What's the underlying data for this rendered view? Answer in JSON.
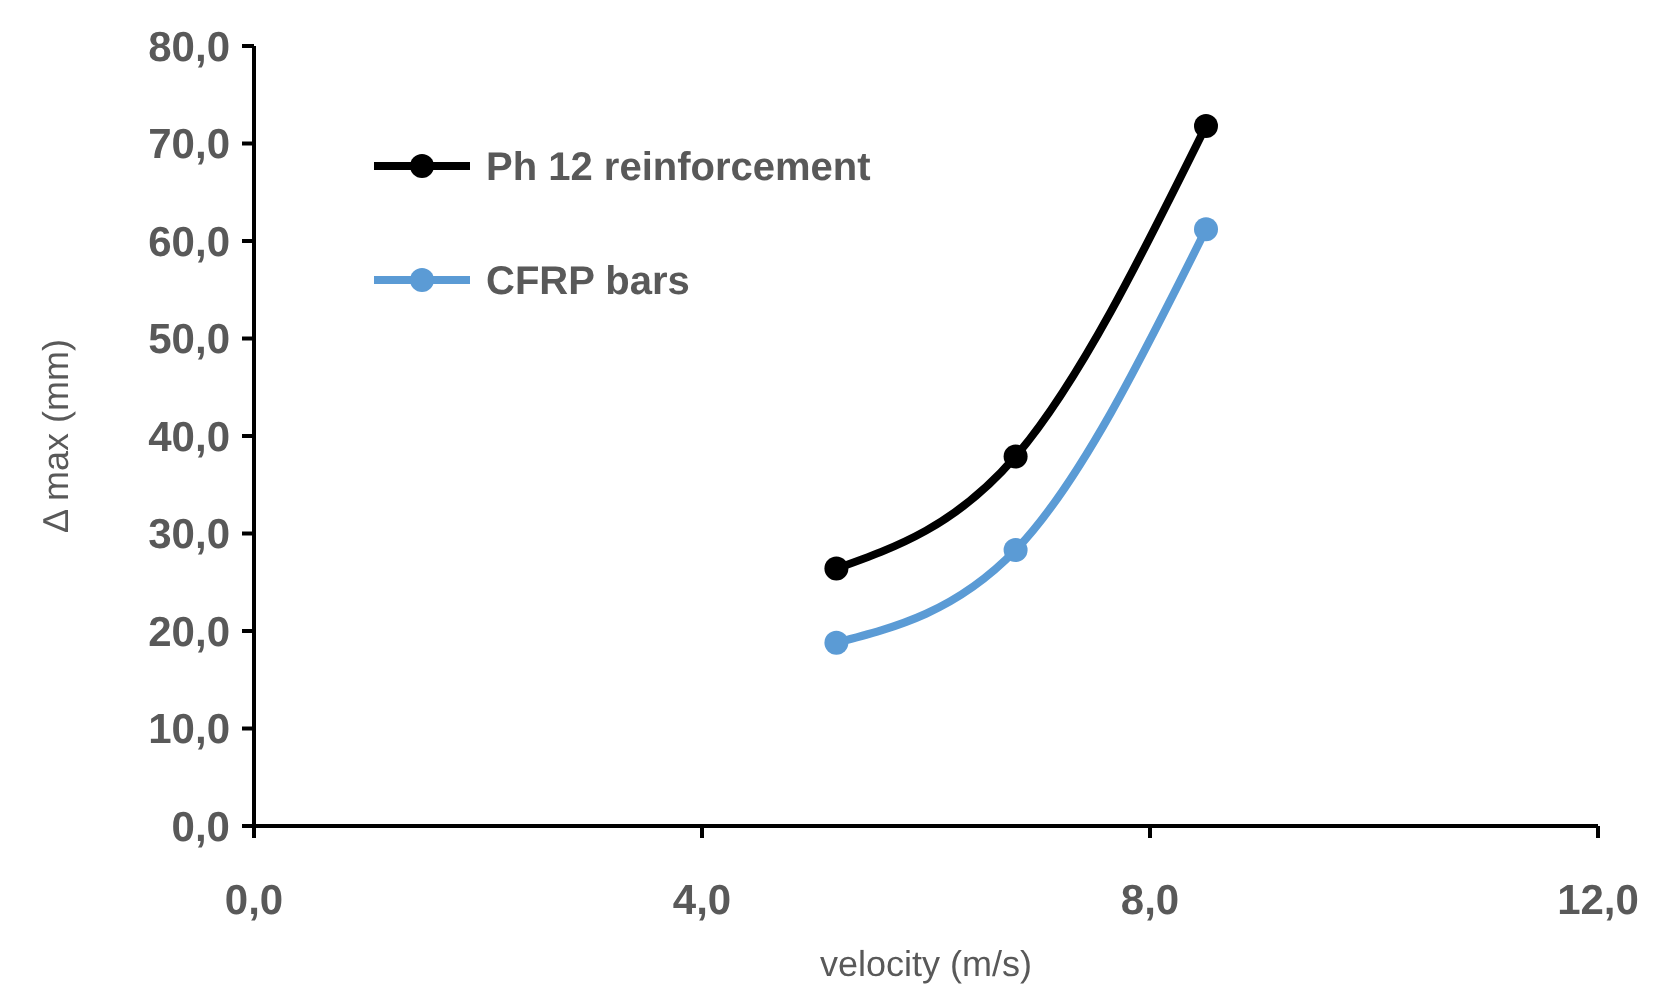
{
  "chart_data": {
    "type": "line",
    "xlabel": "velocity (m/s)",
    "ylabel": "Δ max (mm)",
    "xlim": [
      0,
      12
    ],
    "xticks": [
      {
        "value": 0,
        "label": "0,0"
      },
      {
        "value": 4,
        "label": "4,0"
      },
      {
        "value": 8,
        "label": "8,0"
      },
      {
        "value": 12,
        "label": "12,0"
      }
    ],
    "ylim": [
      0,
      80
    ],
    "yticks": [
      {
        "value": 0,
        "label": "0,0"
      },
      {
        "value": 10,
        "label": "10,0"
      },
      {
        "value": 20,
        "label": "20,0"
      },
      {
        "value": 30,
        "label": "30,0"
      },
      {
        "value": 40,
        "label": "40,0"
      },
      {
        "value": 50,
        "label": "50,0"
      },
      {
        "value": 60,
        "label": "60,0"
      },
      {
        "value": 70,
        "label": "70,0"
      },
      {
        "value": 80,
        "label": "80,0"
      }
    ],
    "x": [
      5.2,
      6.8,
      8.5
    ],
    "series": [
      {
        "name": "Ph 12 reinforcement",
        "color": "#000000",
        "values": [
          26.4,
          37.9,
          71.8
        ]
      },
      {
        "name": "CFRP bars",
        "color": "#5b9bd5",
        "values": [
          18.8,
          28.3,
          61.2
        ]
      }
    ],
    "grid": false,
    "legend": "top left",
    "marker": "circle",
    "line_style": "solid"
  }
}
